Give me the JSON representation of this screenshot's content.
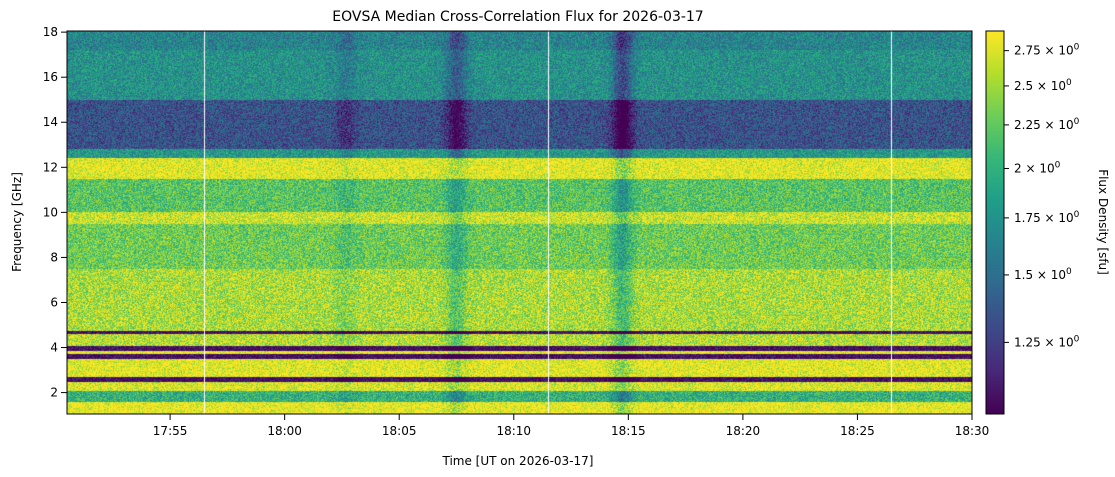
{
  "chart_data": {
    "type": "heatmap",
    "title": "EOVSA Median Cross-Correlation Flux for 2026-03-17",
    "xlabel": "Time [UT on 2026-03-17]",
    "ylabel": "Frequency [GHz]",
    "colorbar_label": "Flux Density [sfu]",
    "colormap": "viridis",
    "colorbar_scale": "log",
    "x_range": [
      "17:50:30",
      "18:30:00"
    ],
    "y_range": [
      1.05,
      18.05
    ],
    "c_range": [
      1.03,
      2.9
    ],
    "x_ticks": [
      "17:55",
      "18:00",
      "18:05",
      "18:10",
      "18:15",
      "18:20",
      "18:25",
      "18:30"
    ],
    "y_ticks": [
      2,
      4,
      6,
      8,
      10,
      12,
      14,
      16,
      18
    ],
    "c_ticks": [
      {
        "value": 1.25,
        "label": "1.25 × 10"
      },
      {
        "value": 1.5,
        "label": "1.5 × 10"
      },
      {
        "value": 1.75,
        "label": "1.75 × 10"
      },
      {
        "value": 2.0,
        "label": "2 × 10"
      },
      {
        "value": 2.25,
        "label": "2.25 × 10"
      },
      {
        "value": 2.5,
        "label": "2.5 × 10"
      },
      {
        "value": 2.75,
        "label": "2.75 × 10"
      }
    ],
    "c_tick_exponent": "0",
    "frequency_profile": [
      {
        "f": [
          1.05,
          1.6
        ],
        "flux": 2.9
      },
      {
        "f": [
          1.6,
          1.75
        ],
        "flux": 2.0
      },
      {
        "f": [
          1.75,
          2.05
        ],
        "flux": 2.0
      },
      {
        "f": [
          2.05,
          2.45
        ],
        "flux": 2.8
      },
      {
        "f": [
          2.45,
          2.7
        ],
        "flux": 1.05
      },
      {
        "f": [
          2.7,
          3.5
        ],
        "flux": 2.85
      },
      {
        "f": [
          3.5,
          3.7
        ],
        "flux": 1.05
      },
      {
        "f": [
          3.7,
          3.85
        ],
        "flux": 2.9
      },
      {
        "f": [
          3.85,
          4.05
        ],
        "flux": 1.05
      },
      {
        "f": [
          4.05,
          4.6
        ],
        "flux": 2.6
      },
      {
        "f": [
          4.6,
          4.72
        ],
        "flux": 1.05
      },
      {
        "f": [
          4.72,
          7.5
        ],
        "flux": 2.55
      },
      {
        "f": [
          7.5,
          9.5
        ],
        "flux": 2.3
      },
      {
        "f": [
          9.5,
          10.0
        ],
        "flux": 2.7
      },
      {
        "f": [
          10.0,
          11.5
        ],
        "flux": 2.2
      },
      {
        "f": [
          11.5,
          12.4
        ],
        "flux": 2.85
      },
      {
        "f": [
          12.4,
          12.8
        ],
        "flux": 1.8
      },
      {
        "f": [
          12.8,
          15.0
        ],
        "flux": 1.35
      },
      {
        "f": [
          15.0,
          17.2
        ],
        "flux": 1.75
      },
      {
        "f": [
          17.2,
          18.05
        ],
        "flux": 1.65
      }
    ],
    "bursts": [
      {
        "time": "18:07:30",
        "flux_drop": 0.35
      },
      {
        "time": "18:14:45",
        "flux_drop": 0.45
      },
      {
        "time": "18:02:40",
        "flux_drop": 0.15
      }
    ],
    "data_gaps": [
      "17:56:30",
      "18:11:30",
      "18:26:30"
    ]
  }
}
